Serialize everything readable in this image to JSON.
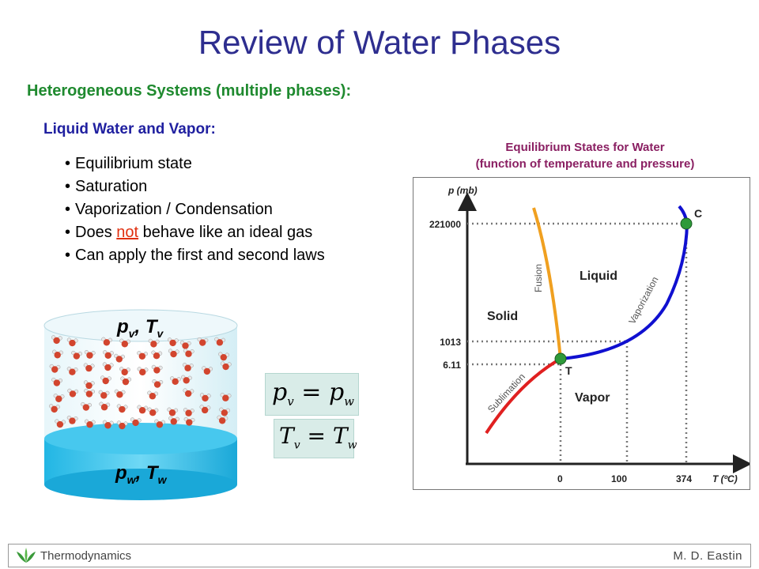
{
  "slide": {
    "title": "Review of Water Phases",
    "subtitle": "Heterogeneous Systems (multiple phases):",
    "section_heading": "Liquid Water and Vapor:",
    "bullets": [
      "Equilibrium state",
      "Saturation",
      "Vaporization / Condensation",
      "Does",
      "Can apply the first and second laws"
    ],
    "bullet4_highlight": "not",
    "bullet4_rest": "behave like an ideal gas"
  },
  "cylinder": {
    "top_label_p": "p",
    "top_label_sub_v": "v",
    "top_label_T": "T",
    "bottom_label_p": "p",
    "bottom_label_sub_w": "w",
    "bottom_label_T": "T",
    "comma": ","
  },
  "equations": {
    "eq1_lhs": "p",
    "eq1_lhs_sub": "v",
    "eq1_rhs": "p",
    "eq1_rhs_sub": "w",
    "eq2_lhs": "T",
    "eq2_lhs_sub": "v",
    "eq2_rhs": "T",
    "eq2_rhs_sub": "w",
    "equals": "="
  },
  "chart_title_line1": "Equilibrium States for Water",
  "chart_title_line2": "(function of temperature and pressure)",
  "chart_data": {
    "type": "line",
    "title": "Equilibrium States for Water (function of temperature and pressure)",
    "xlabel": "T (ºC)",
    "ylabel": "p (mb)",
    "x_ticks": [
      "0",
      "100",
      "374"
    ],
    "y_ticks": [
      "221000",
      "1013",
      "6.11"
    ],
    "scale": "schematic (not linear)",
    "series": [
      {
        "name": "Sublimation",
        "color": "#e02020",
        "points": [
          [
            "below T",
            "below 6.11"
          ],
          [
            0,
            6.11
          ]
        ]
      },
      {
        "name": "Fusion",
        "color": "#f0a020",
        "points": [
          [
            0,
            6.11
          ],
          [
            "near 0",
            "high p"
          ]
        ]
      },
      {
        "name": "Vaporization",
        "color": "#1010d0",
        "points": [
          [
            0,
            6.11
          ],
          [
            100,
            1013
          ],
          [
            374,
            221000
          ]
        ]
      }
    ],
    "points": [
      {
        "label": "T",
        "x": 0,
        "y": 6.11
      },
      {
        "label": "C",
        "x": 374,
        "y": 221000
      }
    ],
    "regions": [
      "Solid",
      "Liquid",
      "Vapor"
    ]
  },
  "colors": {
    "title": "#2e2e8f",
    "subtitle": "#1f8a2f",
    "section": "#2020a0",
    "chart_title": "#8a1f62",
    "highlight": "#e03010",
    "water": "#2fc3ee",
    "vapor_tint": "#cfeef6",
    "point": "#2e9a3a"
  },
  "footer": {
    "left": "Thermodynamics",
    "right": "M. D. Eastin"
  }
}
